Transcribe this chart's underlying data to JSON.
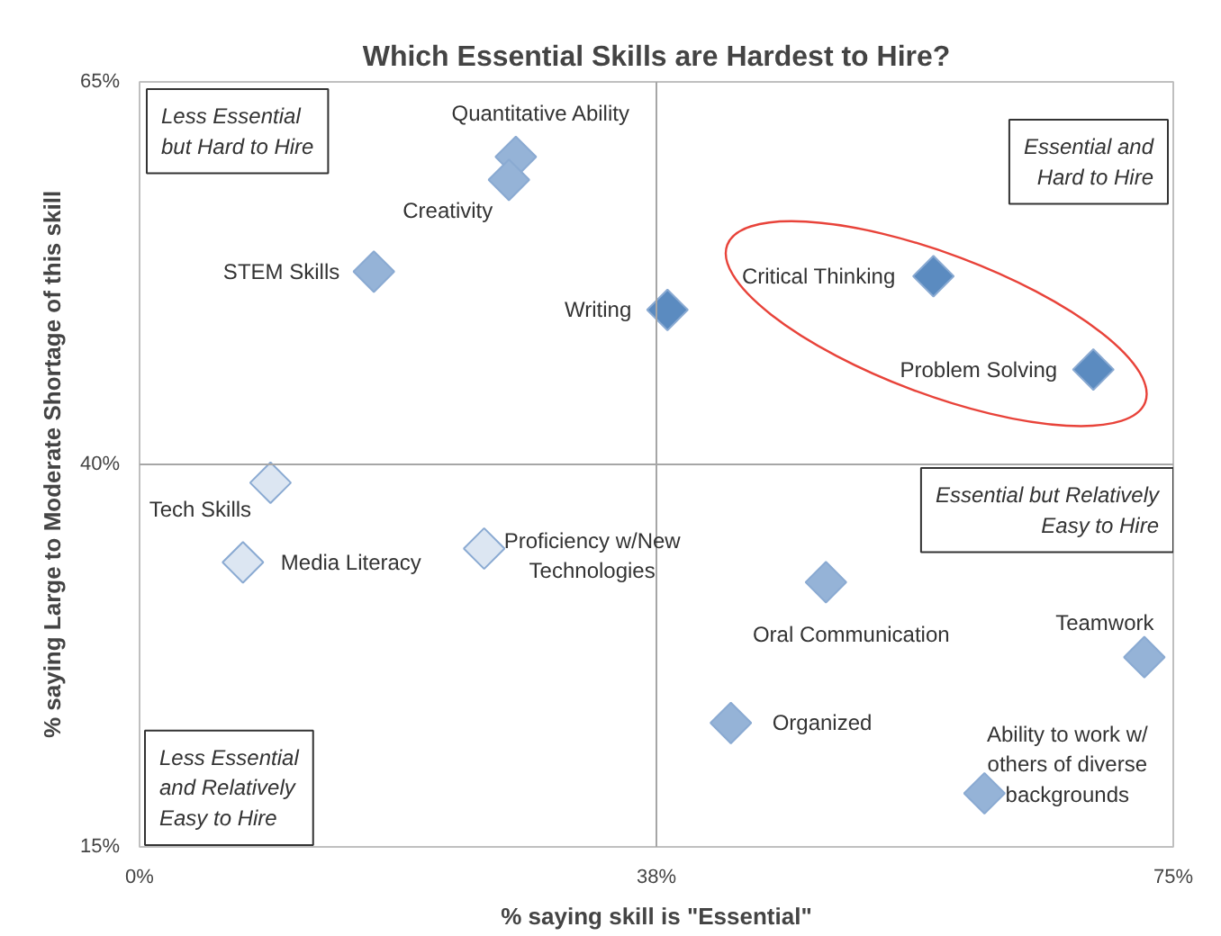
{
  "chart_data": {
    "type": "scatter",
    "title": "Which Essential Skills are Hardest to Hire?",
    "xlabel": "% saying skill is \"Essential\"",
    "ylabel": "% saying Large to Moderate Shortage of this skill",
    "x": [
      27.3,
      26.8,
      17.0,
      38.3,
      57.6,
      69.2,
      9.5,
      7.5,
      25.0,
      49.8,
      72.9,
      42.9,
      61.3
    ],
    "values": [
      60.1,
      58.6,
      52.6,
      50.1,
      52.3,
      46.2,
      38.8,
      33.6,
      34.5,
      32.3,
      27.4,
      23.1,
      18.5
    ],
    "colors": [
      "#95b3d7",
      "#95b3d7",
      "#95b3d7",
      "#5b8bc0",
      "#5b8bc0",
      "#5b8bc0",
      "#dce6f2",
      "#dce6f2",
      "#dce6f2",
      "#95b3d7",
      "#95b3d7",
      "#95b3d7",
      "#95b3d7"
    ],
    "marker": "diamond",
    "xlim": [
      0,
      75
    ],
    "ylim": [
      15,
      65
    ],
    "xticks": [
      {
        "value": 0,
        "label": "0%"
      },
      {
        "value": 37.5,
        "label": "38%"
      },
      {
        "value": 75,
        "label": "75%"
      }
    ],
    "yticks": [
      {
        "value": 15,
        "label": "15%"
      },
      {
        "value": 40,
        "label": "40%"
      },
      {
        "value": 65,
        "label": "65%"
      }
    ],
    "grid": false,
    "ref_lines": [
      {
        "axis": "x",
        "value": 37.5,
        "color": "#a6a6a6"
      },
      {
        "axis": "y",
        "value": 40,
        "color": "#a6a6a6"
      }
    ],
    "annotations": [
      {
        "text": "Quantitative Ability",
        "x": 27.3,
        "y": 60.1
      },
      {
        "text": "Creativity",
        "x": 26.8,
        "y": 58.6
      },
      {
        "text": "STEM Skills",
        "x": 17.0,
        "y": 52.6
      },
      {
        "text": "Writing",
        "x": 38.3,
        "y": 50.1
      },
      {
        "text": "Critical Thinking",
        "x": 57.6,
        "y": 52.3
      },
      {
        "text": "Problem Solving",
        "x": 69.2,
        "y": 46.2
      },
      {
        "text": "Tech Skills",
        "x": 9.5,
        "y": 38.8
      },
      {
        "text": "Media Literacy",
        "x": 7.5,
        "y": 33.6
      },
      {
        "text": "Proficiency w/New\nTechnologies",
        "x": 25.0,
        "y": 34.5
      },
      {
        "text": "Oral Communication",
        "x": 49.8,
        "y": 32.3
      },
      {
        "text": "Teamwork",
        "x": 72.9,
        "y": 27.4
      },
      {
        "text": "Organized",
        "x": 42.9,
        "y": 23.1
      },
      {
        "text": "Ability to work w/\nothers of diverse\nbackgrounds",
        "x": 61.3,
        "y": 18.5
      },
      "Less Essential\nbut Hard to Hire",
      "Essential and\nHard to Hire",
      "Essential but Relatively\nEasy to Hire",
      "Less Essential\nand Relatively\nEasy to Hire"
    ]
  }
}
